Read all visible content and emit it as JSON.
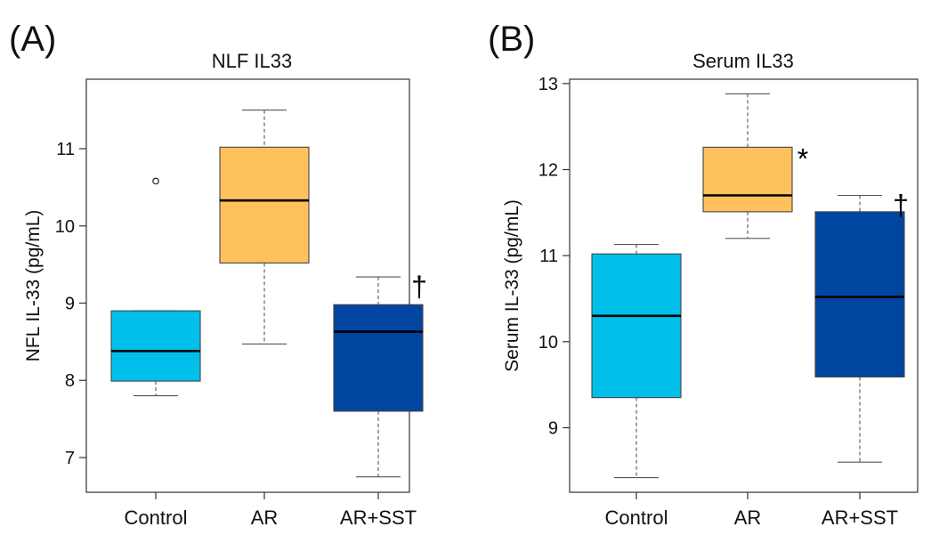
{
  "panels": [
    {
      "label": "(A)"
    },
    {
      "label": "(B)"
    }
  ],
  "colors": {
    "Control": "#00bfea",
    "AR": "#ffc15e",
    "AR+SST": "#0046a0"
  },
  "chart_data": [
    {
      "type": "box",
      "title": "NLF IL33",
      "ylabel": "NFL IL-33 (pg/mL)",
      "xlabel": "",
      "categories": [
        "Control",
        "AR",
        "AR+SST"
      ],
      "yticks": [
        7,
        8,
        9,
        10,
        11
      ],
      "ylim": [
        6.55,
        11.9
      ],
      "boxes": [
        {
          "category": "Control",
          "min": 7.8,
          "q1": 7.99,
          "median": 8.38,
          "q3": 8.9,
          "max": 8.9,
          "outliers": [
            10.58
          ],
          "annotation": ""
        },
        {
          "category": "AR",
          "min": 8.47,
          "q1": 9.52,
          "median": 10.33,
          "q3": 11.02,
          "max": 11.5,
          "outliers": [],
          "annotation": ""
        },
        {
          "category": "AR+SST",
          "min": 6.75,
          "q1": 7.6,
          "median": 8.63,
          "q3": 8.98,
          "max": 9.34,
          "outliers": [],
          "annotation": "†"
        }
      ]
    },
    {
      "type": "box",
      "title": "Serum IL33",
      "ylabel": "Serum IL-33 (pg/mL)",
      "xlabel": "",
      "categories": [
        "Control",
        "AR",
        "AR+SST"
      ],
      "yticks": [
        9,
        10,
        11,
        12,
        13
      ],
      "ylim": [
        8.25,
        13.05
      ],
      "boxes": [
        {
          "category": "Control",
          "min": 8.42,
          "q1": 9.35,
          "median": 10.3,
          "q3": 11.02,
          "max": 11.13,
          "outliers": [],
          "annotation": ""
        },
        {
          "category": "AR",
          "min": 11.2,
          "q1": 11.51,
          "median": 11.7,
          "q3": 12.26,
          "max": 12.88,
          "outliers": [],
          "annotation": "*"
        },
        {
          "category": "AR+SST",
          "min": 8.6,
          "q1": 9.59,
          "median": 10.52,
          "q3": 11.51,
          "max": 11.7,
          "outliers": [],
          "annotation": "†"
        }
      ]
    }
  ]
}
